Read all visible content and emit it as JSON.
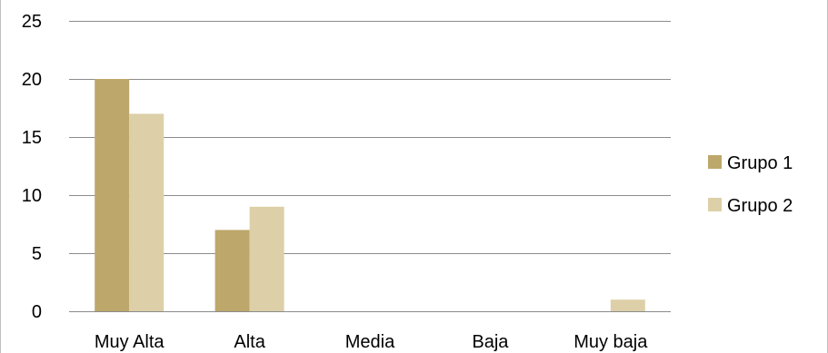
{
  "chart_data": {
    "type": "bar",
    "title": "",
    "xlabel": "",
    "ylabel": "",
    "categories": [
      "Muy Alta",
      "Alta",
      "Media",
      "Baja",
      "Muy baja"
    ],
    "series": [
      {
        "name": "Grupo 1",
        "color": "#bda76a",
        "values": [
          20,
          7,
          0,
          0,
          0
        ]
      },
      {
        "name": "Grupo 2",
        "color": "#ddd0a8",
        "values": [
          17,
          9,
          0,
          0,
          1
        ]
      }
    ],
    "ylim": [
      0,
      25
    ],
    "yticks": [
      "0",
      "5",
      "10",
      "15",
      "20",
      "25"
    ],
    "grid": true,
    "legend_position": "right",
    "gridline_color": "#8c8c8c"
  }
}
